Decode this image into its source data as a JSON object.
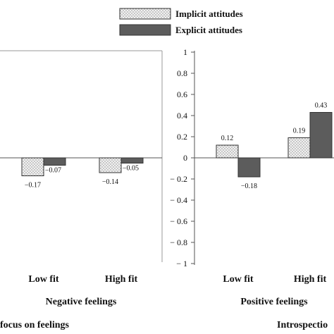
{
  "chart_data": {
    "type": "bar",
    "legend": {
      "placement": "top",
      "entries": [
        {
          "name": "Implicit attitudes",
          "pattern": "dotted",
          "color": "#e6e6e6"
        },
        {
          "name": "Explicit attitudes",
          "pattern": "solid",
          "color": "#5c5c5c"
        }
      ]
    },
    "ylim": [
      -1,
      1
    ],
    "yticks": [
      "1",
      "0.8",
      "0.6",
      "0.4",
      "0.2",
      "0",
      "− 0.2",
      "− 0.4",
      "− 0.6",
      "− 0.8",
      "− 1"
    ],
    "panels": [
      {
        "group_label": "Negative feelings",
        "categories": [
          "Low fit",
          "High fit"
        ],
        "series": [
          {
            "name": "Implicit attitudes",
            "values": [
              -0.17,
              -0.14
            ],
            "labels": [
              "−0.17",
              "−0.14"
            ]
          },
          {
            "name": "Explicit attitudes",
            "values": [
              -0.07,
              -0.05
            ],
            "labels": [
              "−0.07",
              "−0.05"
            ]
          }
        ]
      },
      {
        "group_label": "Positive feelings",
        "categories": [
          "Low fit",
          "High fit"
        ],
        "series": [
          {
            "name": "Implicit attitudes",
            "values": [
              0.12,
              0.19
            ],
            "labels": [
              "0.12",
              "0.19"
            ]
          },
          {
            "name": "Explicit attitudes",
            "values": [
              -0.18,
              0.43
            ],
            "labels": [
              "−0.18",
              "0.43"
            ]
          }
        ]
      }
    ],
    "bottom_labels": [
      "focus on feelings",
      "Introspectio"
    ]
  }
}
